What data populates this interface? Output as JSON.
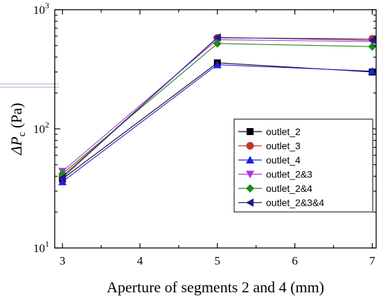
{
  "chart_data": {
    "type": "line",
    "x": [
      3,
      5,
      7
    ],
    "xlabel": "Aperture of segments 2 and 4 (mm)",
    "ylabel_delta": "Δ",
    "ylabel_var": "P",
    "ylabel_sub": "c",
    "ylabel_unit": " (Pa)",
    "xlim": [
      2.9,
      7.05
    ],
    "ylim": [
      10,
      1000
    ],
    "yscale": "log",
    "x_ticks": [
      3,
      4,
      5,
      6,
      7
    ],
    "y_ticks": [
      {
        "value": 10,
        "base": "10",
        "exp": "1"
      },
      {
        "value": 100,
        "base": "10",
        "exp": "2"
      },
      {
        "value": 1000,
        "base": "10",
        "exp": "3"
      }
    ],
    "grid": false,
    "legend_position": "center-right",
    "series": [
      {
        "name": "outlet_2",
        "marker": "square",
        "color": "#000000",
        "values": [
          38,
          358,
          300
        ]
      },
      {
        "name": "outlet_3",
        "marker": "circle",
        "color": "#c0392b",
        "values": [
          40,
          580,
          570
        ]
      },
      {
        "name": "outlet_4",
        "marker": "triangle-up",
        "color": "#1f1fe0",
        "values": [
          36,
          345,
          305
        ]
      },
      {
        "name": "outlet_2&3",
        "marker": "triangle-down",
        "color": "#b035e0",
        "values": [
          44,
          560,
          540
        ]
      },
      {
        "name": "outlet_2&4",
        "marker": "diamond",
        "color": "#1a8c1a",
        "values": [
          42,
          520,
          490
        ]
      },
      {
        "name": "outlet_2&3&4",
        "marker": "triangle-left",
        "color": "#1c1c8c",
        "values": [
          39,
          585,
          555
        ]
      }
    ]
  }
}
